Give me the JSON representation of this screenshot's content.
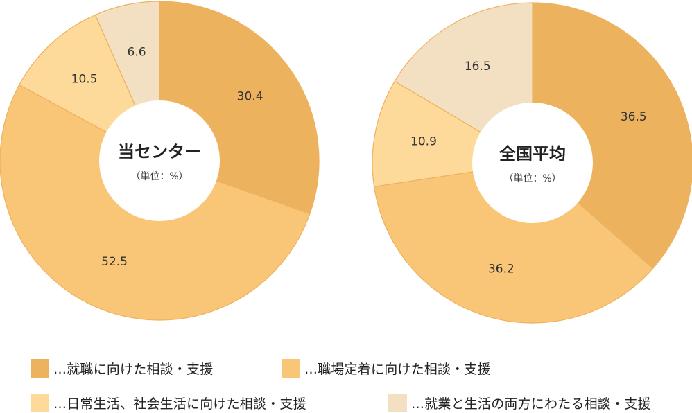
{
  "colors": [
    "#edb25e",
    "#f9c678",
    "#fdd99a",
    "#f3e0c2"
  ],
  "categories": [
    "…就職に向けた相談・支援",
    "…職場定着に向けた相談・支援",
    "…日常生活、社会生活に向けた相談・支援",
    "…就業と生活の両方にわたる相談・支援"
  ],
  "chart_data": [
    {
      "type": "pie",
      "title": "当センター",
      "subtitle": "（単位：%）",
      "categories": [
        "…就職に向けた相談・支援",
        "…職場定着に向けた相談・支援",
        "…日常生活、社会生活に向けた相談・支援",
        "…就業と生活の両方にわたる相談・支援"
      ],
      "values": [
        30.4,
        52.5,
        10.5,
        6.6
      ]
    },
    {
      "type": "pie",
      "title": "全国平均",
      "subtitle": "（単位：%）",
      "categories": [
        "…就職に向けた相談・支援",
        "…職場定着に向けた相談・支援",
        "…日常生活、社会生活に向けた相談・支援",
        "…就業と生活の両方にわたる相談・支援"
      ],
      "values": [
        36.5,
        36.2,
        10.9,
        16.5
      ]
    }
  ]
}
